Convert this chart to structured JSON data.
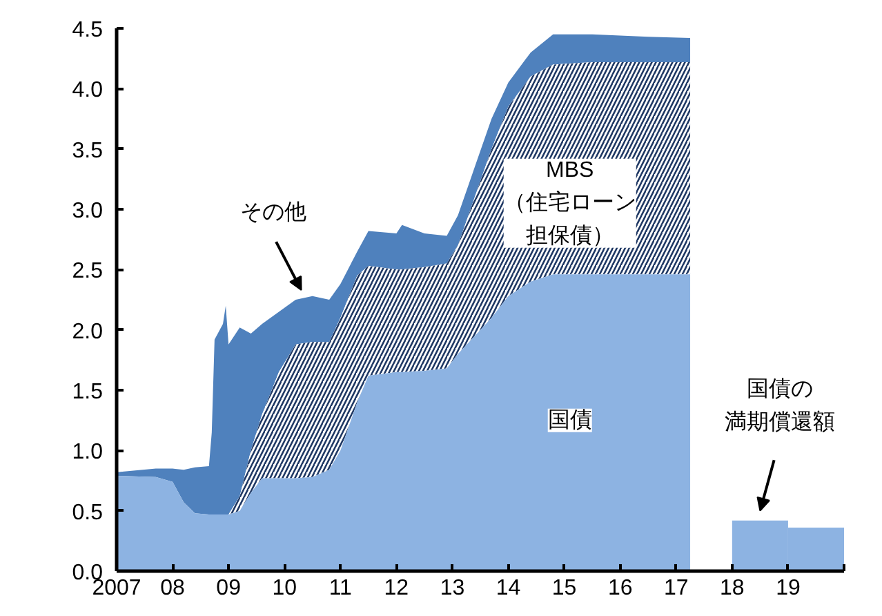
{
  "chart_data": {
    "type": "area",
    "stacked": true,
    "x": [
      2007.0,
      2007.7,
      2008.0,
      2008.2,
      2008.4,
      2008.65,
      2008.7,
      2008.75,
      2008.9,
      2008.95,
      2009.0,
      2009.2,
      2009.4,
      2009.6,
      2009.9,
      2010.2,
      2010.5,
      2010.8,
      2011.0,
      2011.3,
      2011.5,
      2012.0,
      2012.1,
      2012.5,
      2012.9,
      2013.1,
      2013.4,
      2013.7,
      2014.0,
      2014.4,
      2014.8,
      2015.5,
      2016.5,
      2017.25
    ],
    "series": [
      {
        "name": "国債",
        "color": "#8db3e2",
        "values": [
          0.79,
          0.78,
          0.74,
          0.57,
          0.48,
          0.47,
          0.47,
          0.47,
          0.47,
          0.47,
          0.47,
          0.5,
          0.65,
          0.77,
          0.77,
          0.77,
          0.78,
          0.84,
          1.0,
          1.4,
          1.62,
          1.65,
          1.65,
          1.66,
          1.68,
          1.8,
          1.95,
          2.1,
          2.28,
          2.4,
          2.46,
          2.46,
          2.46,
          2.46
        ]
      },
      {
        "name": "MBS（住宅ローン担保債）",
        "color": "#1f3864",
        "values": [
          0,
          0,
          0,
          0,
          0,
          0,
          0,
          0,
          0,
          0,
          0,
          0.12,
          0.35,
          0.53,
          0.88,
          1.11,
          1.12,
          1.06,
          1.1,
          1.05,
          0.91,
          0.85,
          0.85,
          0.86,
          0.87,
          0.9,
          1.15,
          1.4,
          1.57,
          1.7,
          1.74,
          1.76,
          1.76,
          1.76
        ]
      },
      {
        "name": "その他",
        "color": "#4f81bd",
        "values": [
          0.03,
          0.07,
          0.11,
          0.27,
          0.38,
          0.4,
          0.68,
          1.45,
          1.58,
          1.73,
          1.41,
          1.4,
          0.97,
          0.75,
          0.5,
          0.37,
          0.38,
          0.35,
          0.28,
          0.2,
          0.29,
          0.3,
          0.37,
          0.28,
          0.23,
          0.25,
          0.25,
          0.25,
          0.2,
          0.2,
          0.25,
          0.23,
          0.21,
          0.2
        ]
      },
      {
        "type": "bar",
        "color": "#8db3e2",
        "x": [
          2018.5,
          2019.5
        ],
        "values": [
          0.42,
          0.36
        ]
      }
    ],
    "annotations": [
      {
        "text": "国債の満期償還額",
        "x": 2018.5,
        "y": 0.42
      }
    ],
    "xlim": [
      2007,
      2020
    ],
    "xticks": [
      2007,
      {
        "value": 2008,
        "label": "08"
      },
      {
        "value": 2009,
        "label": "09"
      },
      {
        "value": 2010,
        "label": "10"
      },
      {
        "value": 2011,
        "label": "11"
      },
      {
        "value": 2012,
        "label": "12"
      },
      {
        "value": 2013,
        "label": "13"
      },
      {
        "value": 2014,
        "label": "14"
      },
      {
        "value": 2015,
        "label": "15"
      },
      {
        "value": 2016,
        "label": "16"
      },
      {
        "value": 2017,
        "label": "17"
      },
      {
        "value": 2018,
        "label": "18"
      },
      {
        "value": 2019,
        "label": "19"
      },
      {
        "value": 2020,
        "label": null
      }
    ],
    "ylim": [
      0,
      4.5
    ],
    "yticks": [
      {
        "value": 0,
        "label": "0.0"
      },
      0.5,
      {
        "value": 1,
        "label": "1.0"
      },
      1.5,
      {
        "value": 2,
        "label": "2.0"
      },
      2.5,
      {
        "value": 3,
        "label": "3.0"
      },
      3.5,
      {
        "value": 4,
        "label": "4.0"
      },
      4.5
    ],
    "grid": false
  }
}
